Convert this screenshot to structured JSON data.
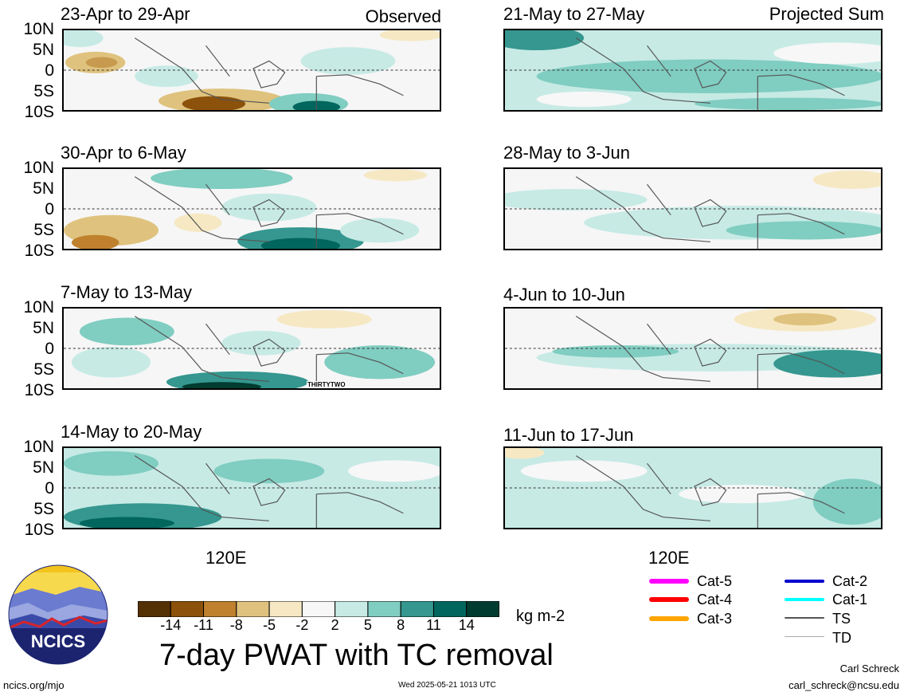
{
  "panels_left": [
    {
      "title": "23-Apr to 29-Apr",
      "tag": "Observed"
    },
    {
      "title": "30-Apr to 6-May",
      "tag": ""
    },
    {
      "title": "7-May to 13-May",
      "tag": "",
      "storm_label": "THIRTYTWO"
    },
    {
      "title": "14-May to 20-May",
      "tag": ""
    }
  ],
  "panels_right": [
    {
      "title": "21-May to 27-May",
      "tag": "Projected Sum"
    },
    {
      "title": "28-May to 3-Jun",
      "tag": ""
    },
    {
      "title": "4-Jun to 10-Jun",
      "tag": ""
    },
    {
      "title": "11-Jun to 17-Jun",
      "tag": ""
    }
  ],
  "y_labels": [
    "10N",
    "5N",
    "0",
    "5S",
    "10S"
  ],
  "x_label": "120E",
  "colorbar": {
    "ticks": [
      "-14",
      "-11",
      "-8",
      "-5",
      "-2",
      "2",
      "5",
      "8",
      "11",
      "14"
    ],
    "colors": [
      "#543005",
      "#8c510a",
      "#bf812d",
      "#dfc27d",
      "#f6e8c3",
      "#f7f7f7",
      "#c7eae5",
      "#80cdc1",
      "#35978f",
      "#01665e",
      "#003c30"
    ],
    "units": "kg m-2"
  },
  "main_title": "7-day PWAT with TC removal",
  "legend": [
    {
      "label": "Cat-5",
      "color": "#ff00ff"
    },
    {
      "label": "Cat-4",
      "color": "#ff0000"
    },
    {
      "label": "Cat-3",
      "color": "#ffa500"
    },
    {
      "label": "Cat-2",
      "color": "#0000cd"
    },
    {
      "label": "Cat-1",
      "color": "#00ffff"
    },
    {
      "label": "TS",
      "color": "#555555"
    },
    {
      "label": "TD",
      "color": "#aaaaaa"
    }
  ],
  "logo_text": "NCICS",
  "footer": {
    "left": "ncics.org/mjo",
    "center": "Wed 2025-05-21 1013 UTC",
    "right_name": "Carl Schreck",
    "right_email": "carl_schreck@ncsu.edu"
  }
}
